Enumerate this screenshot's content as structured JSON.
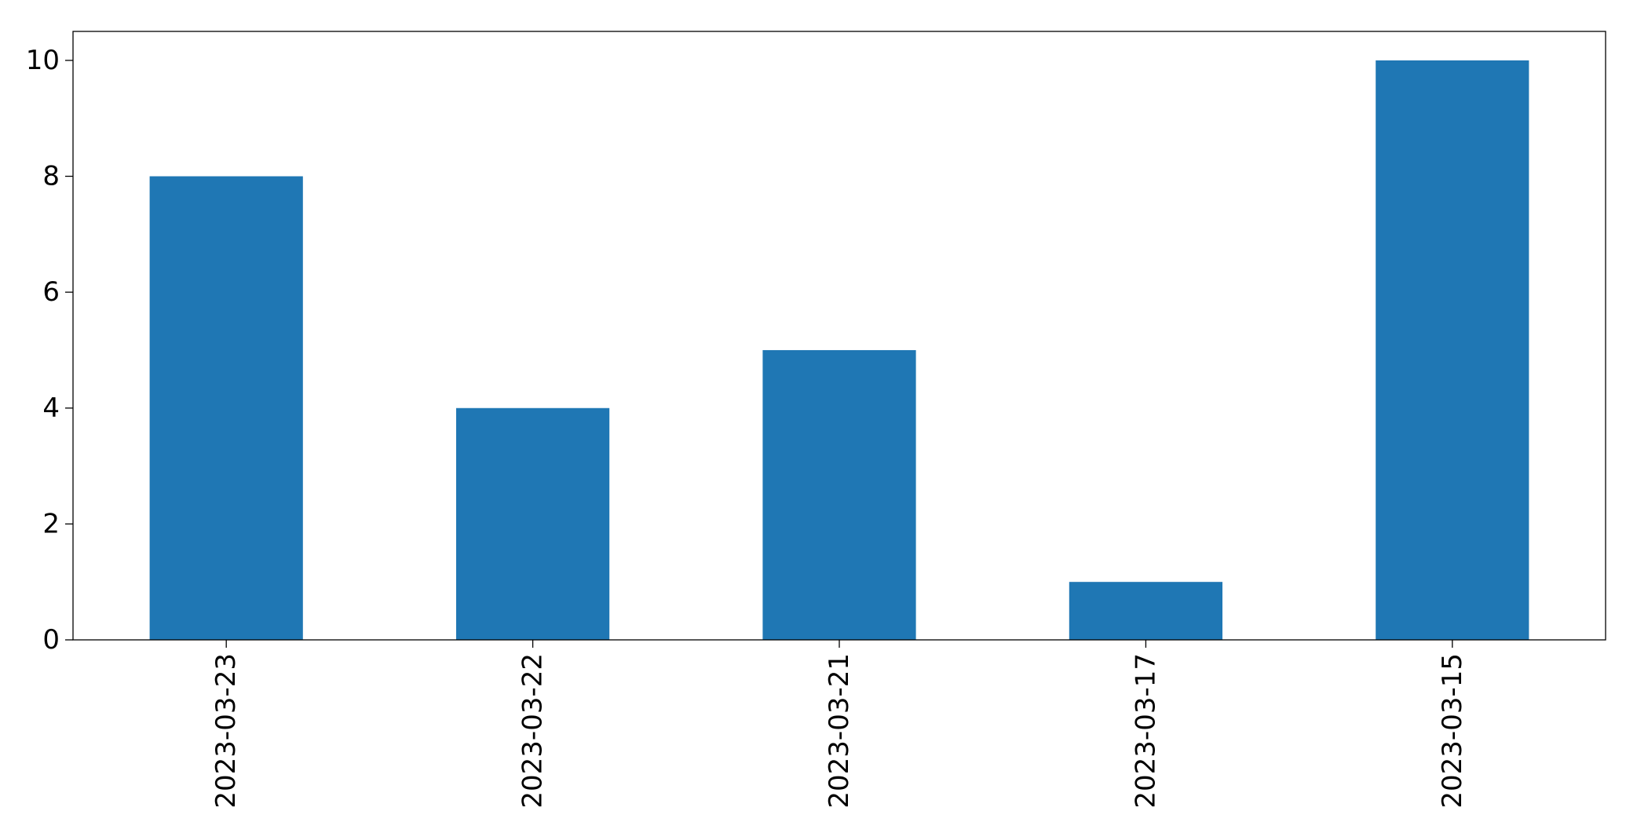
{
  "chart_data": {
    "type": "bar",
    "categories": [
      "2023-03-23",
      "2023-03-22",
      "2023-03-21",
      "2023-03-17",
      "2023-03-15"
    ],
    "values": [
      8,
      4,
      5,
      1,
      10
    ],
    "title": "",
    "xlabel": "",
    "ylabel": "",
    "ylim": [
      0,
      10.5
    ],
    "yticks": [
      0,
      2,
      4,
      6,
      8,
      10
    ],
    "grid": false,
    "legend": "none",
    "bar_color": "#1f77b4"
  }
}
